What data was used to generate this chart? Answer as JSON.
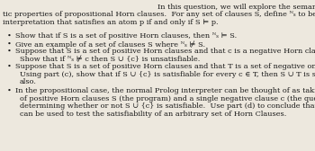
{
  "bg_color": "#ede8de",
  "text_color": "#1a1a1a",
  "figsize": [
    3.5,
    1.68
  ],
  "dpi": 100,
  "font_size": 5.85,
  "font_family": "DejaVu Serif",
  "intro_line1": "In this question, we will explore the seman-",
  "intro_line2": "tic properties of propositional Horn clauses.  For any set of clauses S, define ᴺₛ to be the",
  "intro_line3": "interpretation that satisfies an atom p if and only if S ⊨ p.",
  "bullet1": "Show that if S is a set of positive Horn clauses, then ᴺₛ ⊨ S.",
  "bullet2": "Give an example of a set of clauses S where ᴺₛ ⊭ S.",
  "bullet3a": "Suppose that S is a set of positive Horn clauses and that c is a negative Horn clause.",
  "bullet3b": "Show that if ᴺₛ ⊭ c then S ∪ {c} is unsatisfiable.",
  "bullet4a": "Suppose that S is a set of positive Horn clauses and that T is a set of negative ones.",
  "bullet4b": "Using part (c), show that if S ∪ {c} is satisfiable for every c ∈ T, then S ∪ T is satisfiable",
  "bullet4c": "also.",
  "bullet5a": "In the propositional case, the normal Prolog interpreter can be thought of as taking a set",
  "bullet5b": "of positive Horn clauses S (the program) and a single negative clause c (the query) and",
  "bullet5c": "determining whether or not S ∪ {c} is satisfiable.  Use part (d) to conclude that Prolog",
  "bullet5d": "can be used to test the satisfiability of an arbitrary set of Horn Clauses.",
  "bullet_char": "•"
}
